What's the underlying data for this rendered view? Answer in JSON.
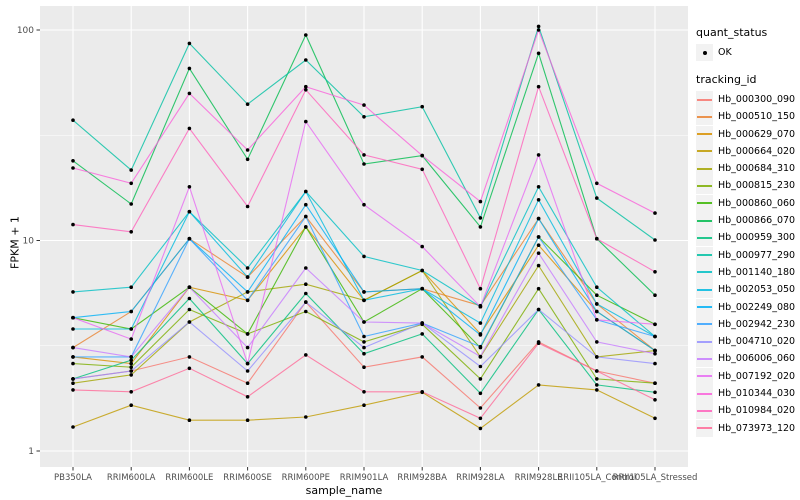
{
  "chart_data": {
    "type": "line",
    "title": "",
    "xlabel": "sample_name",
    "ylabel": "FPKM + 1",
    "y_scale": "log10",
    "y_ticks": [
      1,
      10,
      100
    ],
    "y_minor_ticks": [
      3.1623,
      31.623
    ],
    "ylim": [
      1,
      120
    ],
    "grid": true,
    "legend_position": "right",
    "panel_bg": "#EBEBEB",
    "grid_color": "#FFFFFF",
    "tick_label_color": "#4D4D4D",
    "point_color": "#000000",
    "categories": [
      "PB350LA",
      "RRIM600LA",
      "RRIM600LE",
      "RRIM600SE",
      "RRIM600PE",
      "RRIM901LA",
      "RRIM928BA",
      "RRIM928LA",
      "RRIM928LE",
      "RRII105LA_Control",
      "RRII105LA_Stressed"
    ],
    "legend": {
      "quant_status_title": "quant_status",
      "ok_label": "OK",
      "tracking_title": "tracking_id"
    },
    "series": [
      {
        "name": "Hb_000300_090",
        "color": "#F8766D",
        "values": [
          2.2,
          2.4,
          2.8,
          2.1,
          5.1,
          2.5,
          2.8,
          1.6,
          3.3,
          2.4,
          2.1
        ]
      },
      {
        "name": "Hb_000510_150",
        "color": "#EA8331",
        "values": [
          3.1,
          4.6,
          10.2,
          6.7,
          13.0,
          5.7,
          5.9,
          4.9,
          12.7,
          5.0,
          3.0
        ]
      },
      {
        "name": "Hb_000629_070",
        "color": "#D89000",
        "values": [
          2.8,
          2.6,
          6.0,
          5.2,
          11.6,
          5.2,
          7.2,
          3.6,
          9.5,
          4.6,
          3.0
        ]
      },
      {
        "name": "Hb_000664_020",
        "color": "#C09B00",
        "values": [
          1.3,
          1.65,
          1.4,
          1.4,
          1.45,
          1.65,
          1.9,
          1.28,
          2.06,
          1.95,
          1.43
        ]
      },
      {
        "name": "Hb_000684_310",
        "color": "#A3A500",
        "values": [
          2.1,
          2.3,
          4.1,
          5.7,
          6.2,
          5.2,
          7.2,
          2.8,
          7.6,
          2.8,
          3.0
        ]
      },
      {
        "name": "Hb_000815_230",
        "color": "#7CAE00",
        "values": [
          2.6,
          2.5,
          4.7,
          3.6,
          4.6,
          3.3,
          4.0,
          2.2,
          5.9,
          2.2,
          2.1
        ]
      },
      {
        "name": "Hb_000860_060",
        "color": "#39B600",
        "values": [
          4.3,
          3.8,
          6.0,
          3.6,
          11.6,
          4.1,
          5.9,
          3.1,
          10.4,
          5.5,
          4.0
        ]
      },
      {
        "name": "Hb_000866_070",
        "color": "#00BB4E",
        "values": [
          23.9,
          14.9,
          65.7,
          24.3,
          94.7,
          23.1,
          25.3,
          11.6,
          77.5,
          10.2,
          5.5
        ]
      },
      {
        "name": "Hb_000959_300",
        "color": "#00BF7D",
        "values": [
          2.2,
          2.7,
          5.3,
          2.6,
          5.6,
          2.9,
          3.6,
          1.88,
          4.7,
          2.06,
          1.9
        ]
      },
      {
        "name": "Hb_000977_290",
        "color": "#00C1A3",
        "values": [
          37.3,
          21.6,
          86.4,
          44.4,
          72.0,
          38.7,
          43.2,
          12.8,
          104.0,
          15.9,
          10.05
        ]
      },
      {
        "name": "Hb_001140_180",
        "color": "#00BFC4",
        "values": [
          5.7,
          6.0,
          13.7,
          7.4,
          17.1,
          8.4,
          7.2,
          4.85,
          18.0,
          6.0,
          3.5
        ]
      },
      {
        "name": "Hb_002053_050",
        "color": "#00BAE0",
        "values": [
          3.8,
          3.8,
          13.7,
          6.7,
          17.1,
          5.2,
          5.9,
          4.05,
          15.6,
          5.0,
          3.5
        ]
      },
      {
        "name": "Hb_002249_080",
        "color": "#00B0F6",
        "values": [
          4.3,
          4.6,
          10.2,
          5.7,
          14.8,
          5.7,
          5.9,
          3.56,
          12.7,
          4.6,
          3.0
        ]
      },
      {
        "name": "Hb_002942_230",
        "color": "#35A2FF",
        "values": [
          2.8,
          2.8,
          10.2,
          5.2,
          13.0,
          3.5,
          4.05,
          3.13,
          10.4,
          4.2,
          3.5
        ]
      },
      {
        "name": "Hb_004710_020",
        "color": "#9590FF",
        "values": [
          2.2,
          2.4,
          4.1,
          2.4,
          5.1,
          3.1,
          4.05,
          2.52,
          4.7,
          2.8,
          2.6
        ]
      },
      {
        "name": "Hb_006006_060",
        "color": "#C77CFF",
        "values": [
          3.1,
          2.8,
          6.0,
          3.1,
          7.4,
          4.1,
          4.05,
          2.81,
          8.7,
          3.3,
          2.9
        ]
      },
      {
        "name": "Hb_007192_020",
        "color": "#E76BF3",
        "values": [
          4.3,
          3.4,
          18.0,
          2.6,
          36.7,
          14.8,
          9.35,
          4.85,
          25.5,
          4.2,
          4.0
        ]
      },
      {
        "name": "Hb_010344_030",
        "color": "#FA62DB",
        "values": [
          22.1,
          18.7,
          50.0,
          26.9,
          53.8,
          44.0,
          25.3,
          15.3,
          100.0,
          18.7,
          13.5
        ]
      },
      {
        "name": "Hb_010984_020",
        "color": "#FF62BC",
        "values": [
          11.9,
          11.0,
          34.1,
          14.5,
          52.0,
          25.5,
          21.8,
          5.9,
          53.8,
          10.2,
          7.1
        ]
      },
      {
        "name": "Hb_073973_120",
        "color": "#FF6A98",
        "values": [
          1.95,
          1.91,
          2.47,
          1.81,
          2.86,
          1.91,
          1.91,
          1.43,
          3.25,
          2.4,
          1.75
        ]
      }
    ]
  }
}
